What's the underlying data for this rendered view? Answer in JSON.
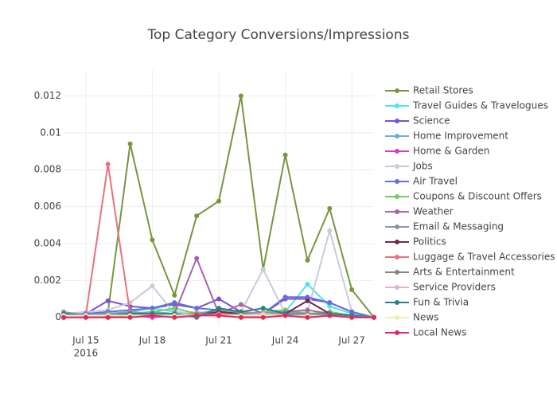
{
  "chart_data": {
    "type": "line",
    "title": "Top Category Conversions/Impressions",
    "x": [
      "2016-07-14",
      "2016-07-15",
      "2016-07-16",
      "2016-07-17",
      "2016-07-18",
      "2016-07-19",
      "2016-07-20",
      "2016-07-21",
      "2016-07-22",
      "2016-07-23",
      "2016-07-24",
      "2016-07-25",
      "2016-07-26",
      "2016-07-27",
      "2016-07-28"
    ],
    "xlim": [
      "2016-07-14",
      "2016-07-28"
    ],
    "xticks": [
      {
        "value": "2016-07-15",
        "label": "Jul 15"
      },
      {
        "value": "2016-07-18",
        "label": "Jul 18"
      },
      {
        "value": "2016-07-21",
        "label": "Jul 21"
      },
      {
        "value": "2016-07-24",
        "label": "Jul 24"
      },
      {
        "value": "2016-07-27",
        "label": "Jul 27"
      }
    ],
    "xtick_year": "2016",
    "ylim": [
      -0.0004,
      0.0134
    ],
    "yticks": [
      0,
      0.002,
      0.004,
      0.006,
      0.008,
      0.01,
      0.012
    ],
    "grid": true,
    "legend": "right",
    "series": [
      {
        "name": "Retail Stores",
        "color": "#77963f",
        "values": [
          0,
          0.0001,
          0.0003,
          0.0094,
          0.0042,
          0.0012,
          0.0055,
          0.0063,
          0.012,
          0.0026,
          0.0088,
          0.0031,
          0.0059,
          0.0015,
          0
        ]
      },
      {
        "name": "Travel Guides & Travelogues",
        "color": "#4de3f0",
        "values": [
          0.0001,
          0.0002,
          0.0001,
          0.0003,
          0.0005,
          0.0003,
          0.0002,
          0.0003,
          0.0002,
          0.0002,
          0.0003,
          0.0018,
          0.0006,
          0.0002,
          0
        ]
      },
      {
        "name": "Science",
        "color": "#7f4ed0",
        "values": [
          0.0001,
          0.0002,
          0.0009,
          0.0006,
          0.0005,
          0.0007,
          0.0005,
          0.001,
          0.0003,
          0.0002,
          0.001,
          0.001,
          0.0008,
          0.0003,
          0
        ]
      },
      {
        "name": "Home Improvement",
        "color": "#6aafd6",
        "values": [
          0.0001,
          0.0001,
          0.0002,
          0.0002,
          0.0003,
          0.0002,
          0.0002,
          0.0002,
          0.0003,
          0.0002,
          0.0004,
          0.0001,
          0.0003,
          0.0001,
          0
        ]
      },
      {
        "name": "Home & Garden",
        "color": "#d13fc9",
        "values": [
          0,
          0,
          0,
          0.0001,
          0,
          0.0001,
          0.0001,
          0.0002,
          0,
          0.0001,
          0.0001,
          0,
          0.0001,
          0,
          0
        ]
      },
      {
        "name": "Jobs",
        "color": "#c8cbdc",
        "values": [
          0.0002,
          0.0003,
          0.0004,
          0.0008,
          0.0017,
          0.0002,
          0.0003,
          0.0002,
          0.0003,
          0.0026,
          0.0002,
          0.0003,
          0.0047,
          0.0003,
          0
        ]
      },
      {
        "name": "Air Travel",
        "color": "#6270dd",
        "values": [
          0.0001,
          0.0002,
          0.0003,
          0.0004,
          0.0005,
          0.0008,
          0.0005,
          0.0004,
          0.0003,
          0.0002,
          0.0011,
          0.0011,
          0.0008,
          0.0003,
          0
        ]
      },
      {
        "name": "Coupons & Discount Offers",
        "color": "#6dd160",
        "values": [
          0.0001,
          0.0001,
          0.0002,
          0.0002,
          0.0003,
          0.0005,
          0.0002,
          0.0003,
          0.0002,
          0.0003,
          0.0004,
          0.0002,
          0.0003,
          0.0001,
          0
        ]
      },
      {
        "name": "Weather",
        "color": "#a765a8",
        "values": [
          0,
          0.0001,
          0.0001,
          0.0002,
          0.0001,
          0.0002,
          0.0032,
          0.0002,
          0.0007,
          0.0002,
          0.0003,
          0.0004,
          0.0002,
          0.0001,
          0
        ]
      },
      {
        "name": "Email & Messaging",
        "color": "#8d92ae",
        "values": [
          0.0003,
          0.0001,
          0.0002,
          0.0003,
          0.0002,
          0.0001,
          0.0002,
          0.0004,
          0.0003,
          0.0002,
          0.0003,
          0.0002,
          0.0002,
          0.0001,
          0
        ]
      },
      {
        "name": "Politics",
        "color": "#6d2b4a",
        "values": [
          0,
          0.0001,
          0,
          0.0001,
          0.0002,
          0.0001,
          0.0001,
          0.0003,
          0.0002,
          0.0001,
          0.0002,
          0.0009,
          0.0002,
          0.0001,
          0
        ]
      },
      {
        "name": "Luggage & Travel Accessories",
        "color": "#e8717e",
        "values": [
          0,
          0.0001,
          0.0083,
          0.0002,
          0.0001,
          0.0002,
          0.0001,
          0.0002,
          0.0001,
          0.0001,
          0.0002,
          0.0001,
          0.0001,
          0.0001,
          0
        ]
      },
      {
        "name": "Arts & Entertainment",
        "color": "#8a8580",
        "values": [
          0.0001,
          0.0001,
          0.0001,
          0.0002,
          0.0001,
          0.0001,
          0.0002,
          0.0001,
          0.0002,
          0.0001,
          0.0001,
          0.0002,
          0.0001,
          0,
          0
        ]
      },
      {
        "name": "Service Providers",
        "color": "#e4b0d6",
        "values": [
          0.0001,
          0,
          0.0001,
          0.0001,
          0.0001,
          0.0002,
          0.0001,
          0.0001,
          0.0001,
          0.0002,
          0.0001,
          0.0001,
          0.0001,
          0,
          0
        ]
      },
      {
        "name": "Fun & Trivia",
        "color": "#2d7f8d",
        "values": [
          0.0002,
          0.0001,
          0.0001,
          0.0002,
          0.0002,
          0.0002,
          0,
          0.0005,
          0.0003,
          0.0005,
          0.0002,
          0.0001,
          0.0002,
          0.0001,
          0
        ]
      },
      {
        "name": "News",
        "color": "#e6f4b0",
        "values": [
          0.0001,
          0.0001,
          0.0001,
          0.0001,
          0.0001,
          0.0001,
          0.0001,
          0.0001,
          0.0001,
          0.0001,
          0.0001,
          0.0001,
          0.0001,
          0,
          0
        ]
      },
      {
        "name": "Local News",
        "color": "#e0295a",
        "values": [
          0,
          0,
          0,
          0,
          0.0001,
          0,
          0.0001,
          0.0001,
          0,
          0,
          0.0001,
          0,
          0.0001,
          0,
          0
        ]
      }
    ]
  }
}
